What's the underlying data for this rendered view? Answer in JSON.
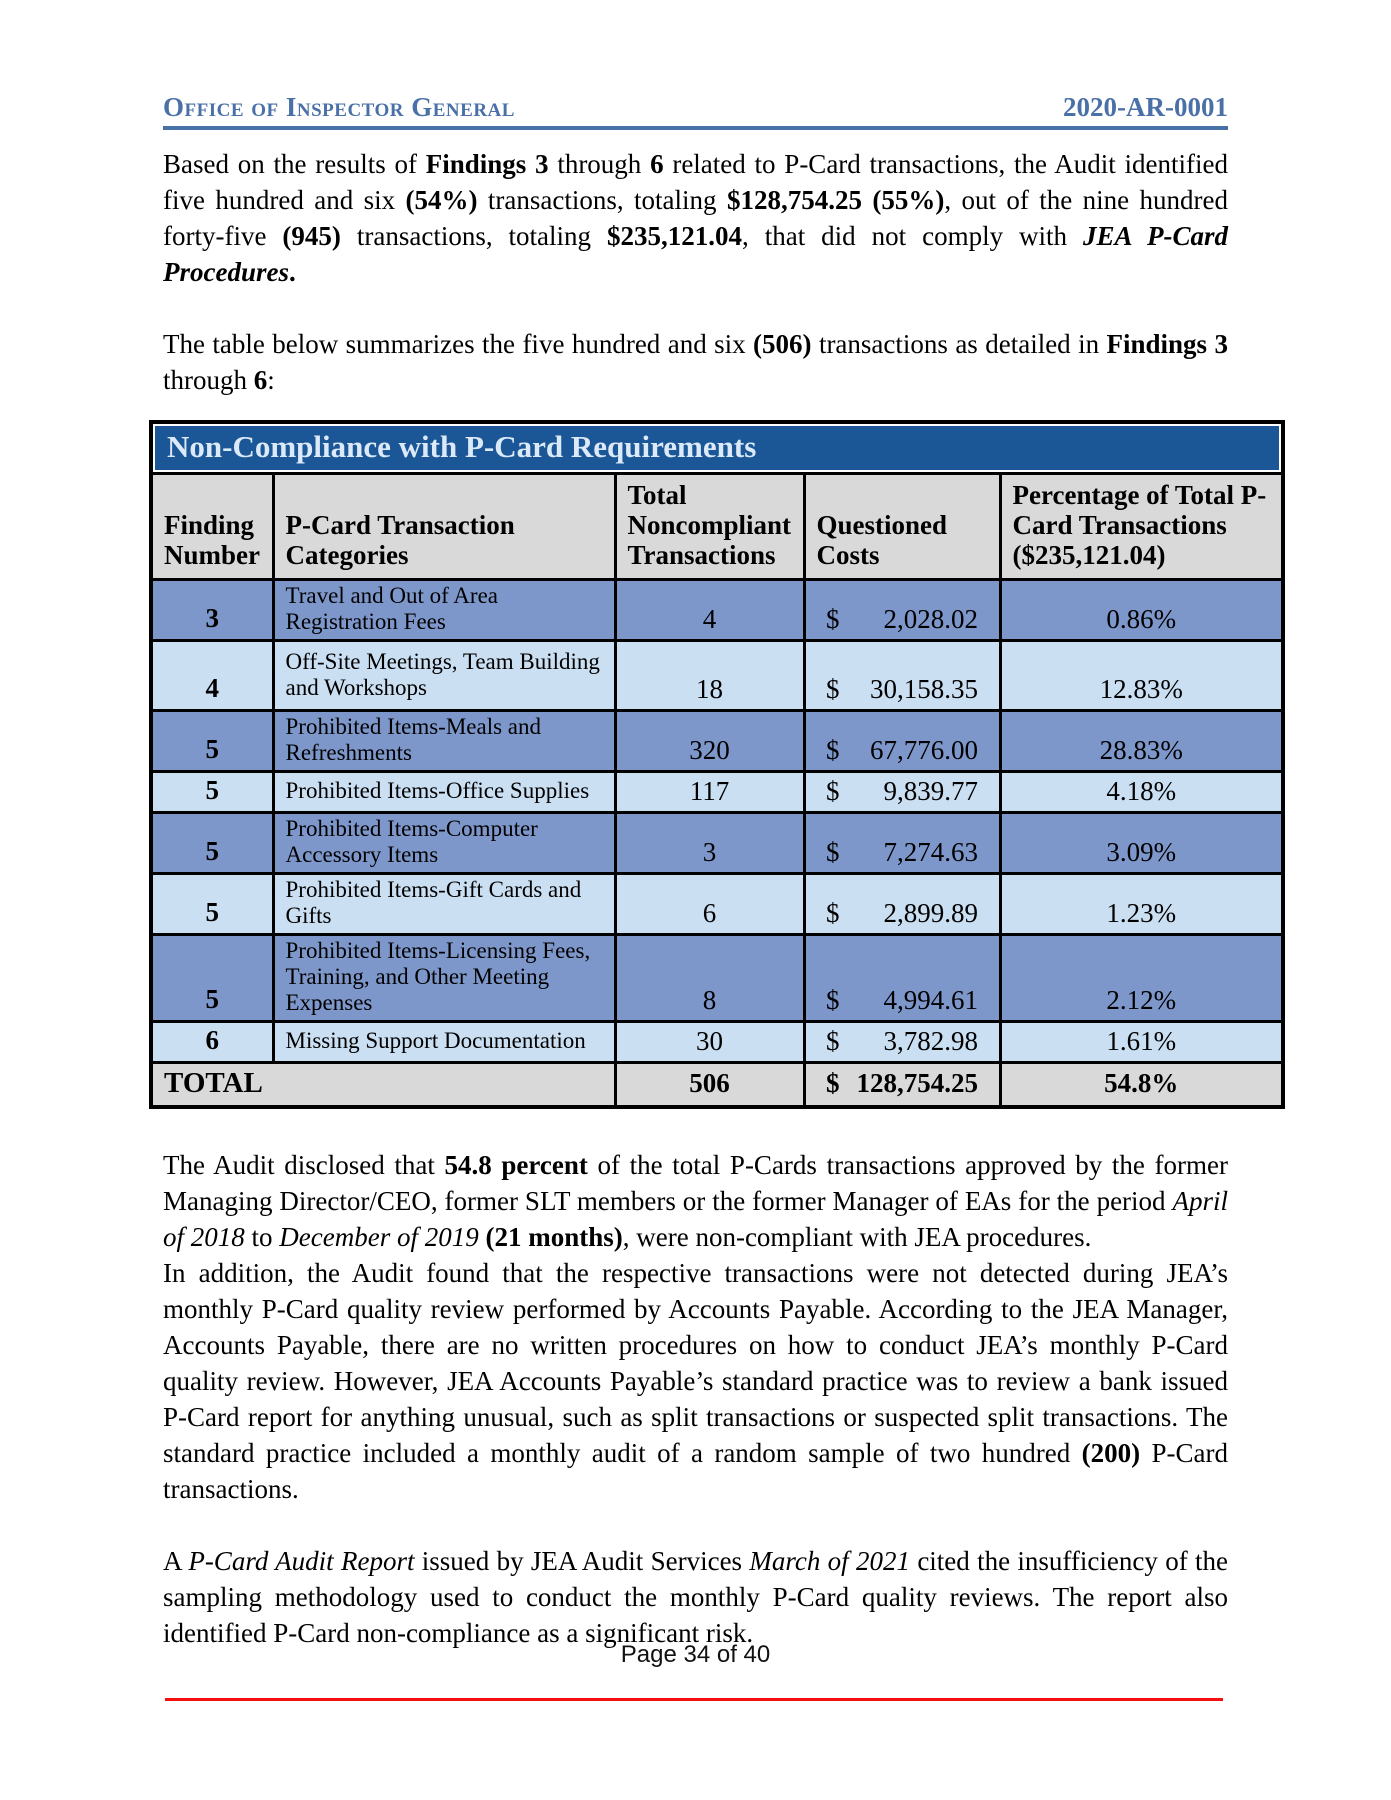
{
  "header": {
    "org": "Office of Inspector General",
    "doc_number": "2020-AR-0001"
  },
  "paragraphs": {
    "intro": [
      {
        "t": "Based on the results of "
      },
      {
        "t": "Findings 3",
        "b": true
      },
      {
        "t": " through "
      },
      {
        "t": "6",
        "b": true
      },
      {
        "t": " related to P-Card transactions, the Audit identified five hundred and six "
      },
      {
        "t": "(54%)",
        "b": true
      },
      {
        "t": " transactions, totaling "
      },
      {
        "t": "$128,754.25 (55%)",
        "b": true
      },
      {
        "t": ", out of the nine hundred forty-five "
      },
      {
        "t": "(945)",
        "b": true
      },
      {
        "t": " transactions, totaling "
      },
      {
        "t": "$235,121.04",
        "b": true
      },
      {
        "t": ", that did not comply with "
      },
      {
        "t": "JEA P-Card Procedures",
        "b": true,
        "i": true
      },
      {
        "t": ".",
        "b": true
      }
    ],
    "table_intro": [
      {
        "t": "The table below summarizes the five hundred and six "
      },
      {
        "t": "(506)",
        "b": true
      },
      {
        "t": " transactions as detailed in "
      },
      {
        "t": "Findings 3",
        "b": true
      },
      {
        "t": " through "
      },
      {
        "t": "6",
        "b": true
      },
      {
        "t": ":"
      }
    ],
    "audit_disclosed": [
      {
        "t": "The Audit disclosed that "
      },
      {
        "t": "54.8 percent",
        "b": true
      },
      {
        "t": " of the total P-Cards transactions approved by the former Managing Director/CEO, former SLT members or the former Manager of EAs for the period "
      },
      {
        "t": "April of 2018",
        "i": true
      },
      {
        "t": " to "
      },
      {
        "t": "December of 2019",
        "i": true
      },
      {
        "t": " "
      },
      {
        "t": "(21 months)",
        "b": true
      },
      {
        "t": ", were non-compliant with JEA procedures."
      }
    ],
    "in_addition": [
      {
        "t": "In addition, the Audit found that the respective transactions were not detected during JEA’s monthly P-Card quality review performed by Accounts Payable.  According to the JEA Manager, Accounts Payable, there are no written procedures on how to conduct JEA’s monthly P-Card quality review.  However, JEA Accounts Payable’s standard practice was to review a bank issued P-Card report for anything unusual, such as split transactions or suspected split transactions.  The standard practice included a monthly audit of a random sample of two hundred "
      },
      {
        "t": "(200)",
        "b": true
      },
      {
        "t": " P-Card transactions."
      }
    ],
    "pcard_audit_report": [
      {
        "t": "A "
      },
      {
        "t": "P-Card Audit Report",
        "i": true
      },
      {
        "t": " issued by JEA Audit Services "
      },
      {
        "t": "March of 2021",
        "i": true
      },
      {
        "t": " cited the insufficiency of the sampling methodology used to conduct the monthly P-Card quality reviews.  The report also identified P-Card non-compliance as a significant risk."
      }
    ]
  },
  "table": {
    "title": "Non-Compliance with P-Card Requirements",
    "columns": [
      "Finding Number",
      "P-Card Transaction Categories",
      "Total Noncompliant Transactions",
      "Questioned Costs",
      "Percentage of Total P-Card Transactions ($235,121.04)"
    ],
    "rows": [
      {
        "finding": "3",
        "category": "Travel and Out of Area Registration Fees",
        "transactions": "4",
        "cost_dollar": "$",
        "cost_amount": "2,028.02",
        "percentage": "0.86%",
        "shade": "medium"
      },
      {
        "finding": "4",
        "category": "Off-Site Meetings, Team Building and Workshops",
        "transactions": "18",
        "cost_dollar": "$",
        "cost_amount": "30,158.35",
        "percentage": "12.83%",
        "shade": "light"
      },
      {
        "finding": "5",
        "category": "Prohibited Items-Meals and Refreshments",
        "transactions": "320",
        "cost_dollar": "$",
        "cost_amount": "67,776.00",
        "percentage": "28.83%",
        "shade": "medium"
      },
      {
        "finding": "5",
        "category": "Prohibited Items-Office Supplies",
        "transactions": "117",
        "cost_dollar": "$",
        "cost_amount": "9,839.77",
        "percentage": "4.18%",
        "shade": "light"
      },
      {
        "finding": "5",
        "category": "Prohibited Items-Computer Accessory Items",
        "transactions": "3",
        "cost_dollar": "$",
        "cost_amount": "7,274.63",
        "percentage": "3.09%",
        "shade": "medium"
      },
      {
        "finding": "5",
        "category": "Prohibited Items-Gift Cards and Gifts",
        "transactions": "6",
        "cost_dollar": "$",
        "cost_amount": "2,899.89",
        "percentage": "1.23%",
        "shade": "light"
      },
      {
        "finding": "5",
        "category": "Prohibited Items-Licensing Fees, Training, and Other Meeting Expenses",
        "transactions": "8",
        "cost_dollar": "$",
        "cost_amount": "4,994.61",
        "percentage": "2.12%",
        "shade": "medium"
      },
      {
        "finding": "6",
        "category": "Missing Support Documentation",
        "transactions": "30",
        "cost_dollar": "$",
        "cost_amount": "3,782.98",
        "percentage": "1.61%",
        "shade": "light"
      }
    ],
    "total": {
      "label": "TOTAL",
      "transactions": "506",
      "cost_dollar": "$",
      "cost_amount": "128,754.25",
      "percentage": "54.8%"
    }
  },
  "footer": {
    "page_label": "Page 34 of 40"
  },
  "colors": {
    "header_blue": "#4a70a8",
    "table_title_bar": "#1b5796",
    "table_title_text": "#dbe9f8",
    "row_medium_blue": "#7e97cb",
    "row_light_blue": "#cbdff2",
    "header_row_gray": "#d9d9d9",
    "footer_rule_red": "#f50f0f"
  }
}
